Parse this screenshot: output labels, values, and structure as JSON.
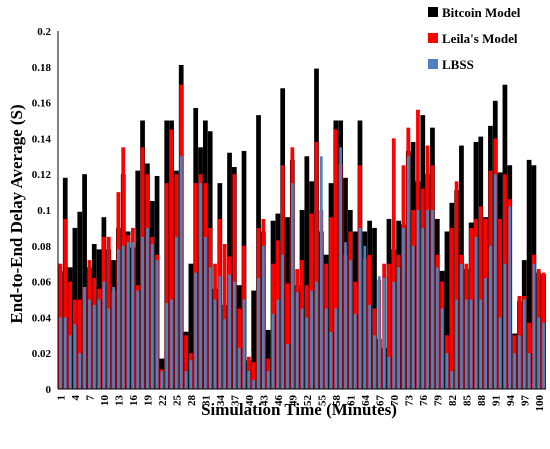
{
  "chart_data": {
    "type": "bar",
    "xlabel": "Simulation Time (Minutes)",
    "ylabel": "End-to-End Delay Average (S)",
    "ylim": [
      0,
      0.2
    ],
    "y_ticks": [
      "0",
      "0.02",
      "0.04",
      "0.06",
      "0.08",
      "0.1",
      "0.12",
      "0.14",
      "0.16",
      "0.18",
      "0.2"
    ],
    "x": [
      1,
      2,
      3,
      4,
      5,
      6,
      7,
      8,
      9,
      10,
      11,
      12,
      13,
      14,
      15,
      16,
      17,
      18,
      19,
      20,
      21,
      22,
      23,
      24,
      25,
      26,
      27,
      28,
      29,
      30,
      31,
      32,
      33,
      34,
      35,
      36,
      37,
      38,
      39,
      40,
      41,
      42,
      43,
      44,
      45,
      46,
      47,
      48,
      49,
      50,
      51,
      52,
      53,
      54,
      55,
      56,
      57,
      58,
      59,
      60,
      61,
      62,
      63,
      64,
      65,
      66,
      67,
      68,
      69,
      70,
      71,
      72,
      73,
      74,
      75,
      76,
      77,
      78,
      79,
      80,
      81,
      82,
      83,
      84,
      85,
      86,
      87,
      88,
      89,
      90,
      91,
      92,
      93,
      94,
      95,
      96,
      97,
      98,
      99,
      100,
      101
    ],
    "x_tick_labels": [
      "1",
      "4",
      "7",
      "10",
      "13",
      "16",
      "19",
      "22",
      "25",
      "28",
      "31",
      "34",
      "37",
      "40",
      "43",
      "46",
      "49",
      "52",
      "55",
      "58",
      "61",
      "64",
      "67",
      "70",
      "73",
      "76",
      "79",
      "82",
      "85",
      "88",
      "91",
      "94",
      "97",
      "100"
    ],
    "grid": false,
    "legend_position": "top-right",
    "series": [
      {
        "name": "Bitcoin Model",
        "color": "#000000",
        "values": [
          0.066,
          0.118,
          0.068,
          0.09,
          0.099,
          0.12,
          0.068,
          0.081,
          0.078,
          0.096,
          0.078,
          0.072,
          0.09,
          0.12,
          0.088,
          0.079,
          0.122,
          0.15,
          0.126,
          0.105,
          0.119,
          0.017,
          0.15,
          0.15,
          0.122,
          0.181,
          0.032,
          0.07,
          0.157,
          0.135,
          0.15,
          0.144,
          0.056,
          0.115,
          0.047,
          0.132,
          0.124,
          0.058,
          0.133,
          0.016,
          0.055,
          0.153,
          0.088,
          0.033,
          0.094,
          0.098,
          0.168,
          0.096,
          0.128,
          0.058,
          0.1,
          0.13,
          0.116,
          0.179,
          0.088,
          0.075,
          0.115,
          0.15,
          0.15,
          0.118,
          0.1,
          0.088,
          0.15,
          0.088,
          0.094,
          0.09,
          0.028,
          0.023,
          0.095,
          0.078,
          0.094,
          0.092,
          0.133,
          0.138,
          0.116,
          0.153,
          0.12,
          0.146,
          0.095,
          0.066,
          0.088,
          0.104,
          0.111,
          0.136,
          0.067,
          0.093,
          0.138,
          0.141,
          0.096,
          0.147,
          0.161,
          0.121,
          0.17,
          0.125,
          0.031,
          0.049,
          0.072,
          0.128,
          0.125,
          0.065,
          0.064
        ]
      },
      {
        "name": "Leila's Model",
        "color": "#ff0000",
        "values": [
          0.07,
          0.095,
          0.06,
          0.05,
          0.05,
          0.057,
          0.072,
          0.062,
          0.056,
          0.085,
          0.085,
          0.055,
          0.11,
          0.135,
          0.086,
          0.09,
          0.058,
          0.135,
          0.12,
          0.085,
          0.075,
          0.011,
          0.115,
          0.145,
          0.12,
          0.17,
          0.03,
          0.02,
          0.115,
          0.12,
          0.115,
          0.09,
          0.07,
          0.095,
          0.081,
          0.074,
          0.12,
          0.045,
          0.08,
          0.018,
          0.015,
          0.09,
          0.095,
          0.017,
          0.07,
          0.083,
          0.125,
          0.059,
          0.135,
          0.067,
          0.072,
          0.058,
          0.098,
          0.138,
          0.1,
          0.07,
          0.096,
          0.145,
          0.126,
          0.075,
          0.088,
          0.06,
          0.125,
          0.073,
          0.075,
          0.045,
          0.061,
          0.07,
          0.07,
          0.14,
          0.075,
          0.125,
          0.146,
          0.1,
          0.156,
          0.112,
          0.136,
          0.125,
          0.075,
          0.06,
          0.03,
          0.09,
          0.116,
          0.075,
          0.07,
          0.09,
          0.095,
          0.102,
          0.095,
          0.122,
          0.14,
          0.095,
          0.12,
          0.106,
          0.03,
          0.052,
          0.052,
          0.037,
          0.075,
          0.067,
          0.065
        ]
      },
      {
        "name": "LBSS",
        "color": "#4f81bd",
        "values": [
          0.04,
          0.04,
          0.03,
          0.036,
          0.02,
          0.057,
          0.05,
          0.047,
          0.05,
          0.06,
          0.045,
          0.057,
          0.078,
          0.08,
          0.082,
          0.082,
          0.055,
          0.085,
          0.09,
          0.081,
          0.072,
          0.01,
          0.048,
          0.05,
          0.085,
          0.13,
          0.01,
          0.016,
          0.065,
          0.115,
          0.085,
          0.068,
          0.05,
          0.063,
          0.039,
          0.064,
          0.06,
          0.023,
          0.05,
          0.01,
          0.005,
          0.062,
          0.08,
          0.01,
          0.042,
          0.05,
          0.075,
          0.025,
          0.115,
          0.054,
          0.045,
          0.04,
          0.055,
          0.06,
          0.13,
          0.045,
          0.032,
          0.045,
          0.135,
          0.082,
          0.072,
          0.042,
          0.09,
          0.08,
          0.047,
          0.03,
          0.063,
          0.062,
          0.018,
          0.06,
          0.068,
          0.09,
          0.13,
          0.08,
          0.1,
          0.09,
          0.1,
          0.1,
          0.068,
          0.045,
          0.02,
          0.01,
          0.05,
          0.07,
          0.05,
          0.05,
          0.085,
          0.05,
          0.062,
          0.08,
          0.12,
          0.04,
          0.07,
          0.102,
          0.02,
          0.03,
          0.05,
          0.02,
          0.07,
          0.04,
          0.037
        ]
      }
    ]
  }
}
